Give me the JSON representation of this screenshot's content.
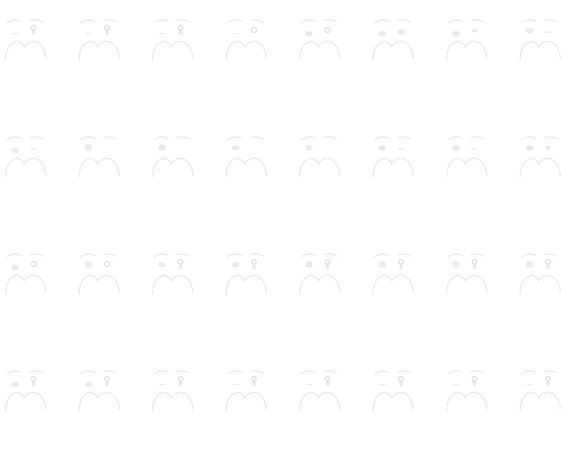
{
  "sprite_sheet": {
    "background": "#ffffff",
    "line_color": "#e6e6e6",
    "columns": 8,
    "rows": 4,
    "frames": [
      {
        "left_eye": "line",
        "right_eye": "dot-tail"
      },
      {
        "left_eye": "line",
        "right_eye": "dot-tail"
      },
      {
        "left_eye": "line",
        "right_eye": "dot-tail"
      },
      {
        "left_eye": "line",
        "right_eye": "ring"
      },
      {
        "left_eye": "blob",
        "right_eye": "ring"
      },
      {
        "left_eye": "blob",
        "right_eye": "blob"
      },
      {
        "left_eye": "blob",
        "right_eye": "small-blob"
      },
      {
        "left_eye": "blob-high",
        "right_eye": "line"
      },
      {
        "left_eye": "blob",
        "right_eye": "line"
      },
      {
        "left_eye": "square-high",
        "right_eye": "none"
      },
      {
        "left_eye": "square-high",
        "right_eye": "none"
      },
      {
        "left_eye": "blob-high",
        "right_eye": "none"
      },
      {
        "left_eye": "blob-high",
        "right_eye": "none"
      },
      {
        "left_eye": "blob-high",
        "right_eye": "line"
      },
      {
        "left_eye": "blob-high",
        "right_eye": "line"
      },
      {
        "left_eye": "blob-high",
        "right_eye": "small-blob"
      },
      {
        "left_eye": "blob",
        "right_eye": "ring"
      },
      {
        "left_eye": "square-high",
        "right_eye": "ring"
      },
      {
        "left_eye": "blob-high",
        "right_eye": "dot-tail"
      },
      {
        "left_eye": "blob-high",
        "right_eye": "dot-tail"
      },
      {
        "left_eye": "square-high",
        "right_eye": "dot-tail"
      },
      {
        "left_eye": "square-high",
        "right_eye": "dot-tail"
      },
      {
        "left_eye": "square-high",
        "right_eye": "dot-tail"
      },
      {
        "left_eye": "square-high",
        "right_eye": "dot-tail"
      },
      {
        "left_eye": "blob",
        "right_eye": "dot-tail"
      },
      {
        "left_eye": "blob",
        "right_eye": "dot-tail"
      },
      {
        "left_eye": "line",
        "right_eye": "dot-tail"
      },
      {
        "left_eye": "line",
        "right_eye": "dot-tail"
      },
      {
        "left_eye": "line",
        "right_eye": "dot-tail"
      },
      {
        "left_eye": "line",
        "right_eye": "dot-tail"
      },
      {
        "left_eye": "line",
        "right_eye": "dot-tail"
      },
      {
        "left_eye": "line",
        "right_eye": "dot-tail"
      }
    ]
  }
}
